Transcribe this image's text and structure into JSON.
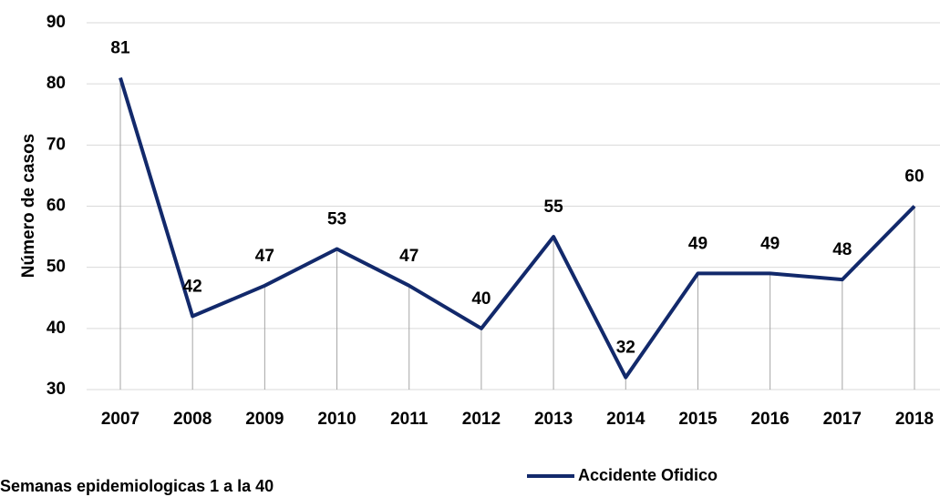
{
  "chart_data": {
    "type": "line",
    "y_label": "Número de casos",
    "note": "Semanas epidemiologicas 1 a la 40",
    "categories": [
      "2007",
      "2008",
      "2009",
      "2010",
      "2011",
      "2012",
      "2013",
      "2014",
      "2015",
      "2016",
      "2017",
      "2018"
    ],
    "series": [
      {
        "name": "Accidente Ofidico",
        "color": "#12296b",
        "values": [
          81,
          42,
          47,
          53,
          47,
          40,
          55,
          32,
          49,
          49,
          48,
          60
        ]
      }
    ],
    "ylim": [
      30,
      90
    ],
    "yticks": [
      30,
      40,
      50,
      60,
      70,
      80,
      90
    ],
    "grid": true,
    "legend": "bottom"
  }
}
